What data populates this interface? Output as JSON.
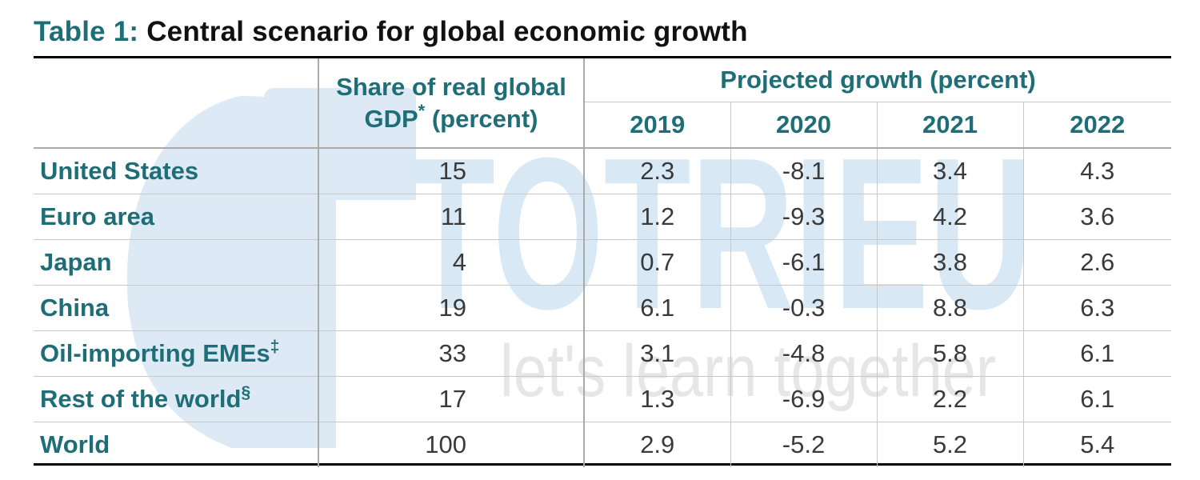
{
  "title": {
    "prefix": "Table 1:",
    "text": "Central scenario for global economic growth"
  },
  "watermark": {
    "brand": "TOTRIEU",
    "tagline": "let's learn together"
  },
  "chart_data": {
    "type": "table",
    "title": "Table 1: Central scenario for global economic growth",
    "share_header": {
      "line1": "Share of real global",
      "line2": "GDP",
      "marker": "*",
      "line2_suffix": "(percent)"
    },
    "group_header": "Projected growth (percent)",
    "years": [
      "2019",
      "2020",
      "2021",
      "2022"
    ],
    "rows": [
      {
        "label": "United States",
        "marker": "",
        "share": "15",
        "growth": [
          "2.3",
          "-8.1",
          "3.4",
          "4.3"
        ]
      },
      {
        "label": "Euro area",
        "marker": "",
        "share": "11",
        "growth": [
          "1.2",
          "-9.3",
          "4.2",
          "3.6"
        ]
      },
      {
        "label": "Japan",
        "marker": "",
        "share": "4",
        "growth": [
          "0.7",
          "-6.1",
          "3.8",
          "2.6"
        ]
      },
      {
        "label": "China",
        "marker": "",
        "share": "19",
        "growth": [
          "6.1",
          "-0.3",
          "8.8",
          "6.3"
        ]
      },
      {
        "label": "Oil-importing EMEs",
        "marker": "‡",
        "share": "33",
        "growth": [
          "3.1",
          "-4.8",
          "5.8",
          "6.1"
        ]
      },
      {
        "label": "Rest of the world",
        "marker": "§",
        "share": "17",
        "growth": [
          "1.3",
          "-6.9",
          "2.2",
          "6.1"
        ]
      },
      {
        "label": "World",
        "marker": "",
        "share": "100",
        "growth": [
          "2.9",
          "-5.2",
          "5.2",
          "5.4"
        ]
      }
    ]
  },
  "colors": {
    "accent": "#1f6e77",
    "body_text": "#3a3a3a",
    "title_text": "#111111",
    "watermark": "#dce9f4",
    "watermark_text": "#e6e6e6"
  }
}
